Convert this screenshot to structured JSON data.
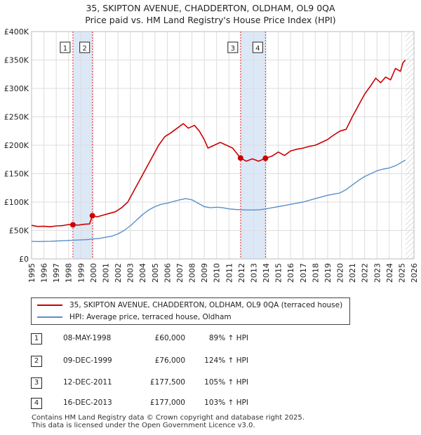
{
  "title_line1": "35, SKIPTON AVENUE, CHADDERTON, OLDHAM, OL9 0QA",
  "title_line2": "Price paid vs. HM Land Registry's House Price Index (HPI)",
  "colors": {
    "property": "#cc0000",
    "hpi": "#5b8fc9",
    "shade": "#dde8f7",
    "vline_red": "#e03030",
    "vline_gray": "#888888",
    "grid": "#dddddd"
  },
  "chart_data": {
    "type": "line",
    "ylim": [
      0,
      400000
    ],
    "xlim": [
      1995,
      2026
    ],
    "y_ticks": [
      0,
      50000,
      100000,
      150000,
      200000,
      250000,
      300000,
      350000,
      400000
    ],
    "y_tick_labels": [
      "£0",
      "£50K",
      "£100K",
      "£150K",
      "£200K",
      "£250K",
      "£300K",
      "£350K",
      "£400K"
    ],
    "x_ticks": [
      1995,
      1996,
      1997,
      1998,
      1999,
      2000,
      2001,
      2002,
      2003,
      2004,
      2005,
      2006,
      2007,
      2008,
      2009,
      2010,
      2011,
      2012,
      2013,
      2014,
      2015,
      2016,
      2017,
      2018,
      2019,
      2020,
      2021,
      2022,
      2023,
      2024,
      2025,
      2026
    ],
    "x_tick_labels": [
      "1995",
      "1996",
      "1997",
      "1998",
      "1999",
      "2000",
      "2001",
      "2002",
      "2003",
      "2004",
      "2005",
      "2006",
      "2007",
      "2008",
      "2009",
      "2010",
      "2011",
      "2012",
      "2013",
      "2014",
      "2015",
      "2016",
      "2017",
      "2018",
      "2019",
      "2020",
      "2021",
      "2022",
      "2023",
      "2024",
      "2025",
      "2026"
    ],
    "shaded_ranges": [
      [
        1998.35,
        1999.93
      ],
      [
        2011.94,
        2013.96
      ]
    ],
    "forecast_start": 2025.3,
    "series": [
      {
        "name": "35, SKIPTON AVENUE, CHADDERTON, OLDHAM, OL9 0QA (terraced house)",
        "x": [
          1995.0,
          1995.5,
          1996.0,
          1996.5,
          1997.0,
          1997.5,
          1998.0,
          1998.35,
          1998.8,
          1999.3,
          1999.7,
          1999.93,
          2000.3,
          2000.8,
          2001.3,
          2001.8,
          2002.3,
          2002.8,
          2003.3,
          2003.8,
          2004.3,
          2004.8,
          2005.3,
          2005.8,
          2006.3,
          2006.8,
          2007.3,
          2007.7,
          2008.2,
          2008.6,
          2009.0,
          2009.3,
          2009.8,
          2010.3,
          2010.8,
          2011.3,
          2011.94,
          2012.4,
          2012.9,
          2013.4,
          2013.96,
          2014.5,
          2015.0,
          2015.5,
          2016.0,
          2016.5,
          2017.0,
          2017.5,
          2018.0,
          2018.5,
          2019.0,
          2019.5,
          2020.0,
          2020.5,
          2021.0,
          2021.5,
          2022.0,
          2022.5,
          2022.9,
          2023.3,
          2023.7,
          2024.1,
          2024.5,
          2024.9,
          2025.1,
          2025.3
        ],
        "y": [
          59000,
          57000,
          57500,
          56500,
          58000,
          58500,
          60500,
          60000,
          59500,
          61000,
          61500,
          76000,
          74000,
          77000,
          80000,
          83000,
          90000,
          100000,
          120000,
          140000,
          160000,
          180000,
          200000,
          215000,
          222000,
          230000,
          238000,
          230000,
          235000,
          225000,
          210000,
          195000,
          200000,
          205000,
          200000,
          195000,
          177500,
          172000,
          176000,
          172000,
          177000,
          181000,
          188000,
          182000,
          190000,
          193000,
          195000,
          198000,
          200000,
          205000,
          210000,
          218000,
          225000,
          228000,
          250000,
          270000,
          290000,
          305000,
          318000,
          310000,
          320000,
          315000,
          335000,
          330000,
          345000,
          350000
        ]
      },
      {
        "name": "HPI: Average price, terraced house, Oldham",
        "x": [
          1995.0,
          1995.5,
          1996.0,
          1996.5,
          1997.0,
          1997.5,
          1998.0,
          1998.5,
          1999.0,
          1999.5,
          2000.0,
          2000.5,
          2001.0,
          2001.5,
          2002.0,
          2002.5,
          2003.0,
          2003.5,
          2004.0,
          2004.5,
          2005.0,
          2005.5,
          2006.0,
          2006.5,
          2007.0,
          2007.5,
          2008.0,
          2008.5,
          2009.0,
          2009.5,
          2010.0,
          2010.5,
          2011.0,
          2011.5,
          2012.0,
          2012.5,
          2013.0,
          2013.5,
          2014.0,
          2014.5,
          2015.0,
          2015.5,
          2016.0,
          2016.5,
          2017.0,
          2017.5,
          2018.0,
          2018.5,
          2019.0,
          2019.5,
          2020.0,
          2020.5,
          2021.0,
          2021.5,
          2022.0,
          2022.5,
          2023.0,
          2023.5,
          2024.0,
          2024.5,
          2025.0,
          2025.3
        ],
        "y": [
          31000,
          30500,
          30800,
          31000,
          31500,
          32000,
          32500,
          33000,
          33500,
          34000,
          35000,
          36000,
          38000,
          40000,
          44000,
          50000,
          58000,
          68000,
          78000,
          86000,
          92000,
          96000,
          98000,
          101000,
          104000,
          106000,
          104000,
          98000,
          92000,
          90000,
          91000,
          90000,
          88000,
          87000,
          86500,
          86000,
          86000,
          86500,
          88000,
          90000,
          92000,
          94000,
          96000,
          98000,
          100000,
          103000,
          106000,
          109000,
          112000,
          114000,
          116000,
          122000,
          130000,
          138000,
          145000,
          150000,
          155000,
          158000,
          160000,
          164000,
          170000,
          174000
        ]
      }
    ],
    "sale_points": [
      {
        "label": "1",
        "x": 1998.35,
        "y": 60000
      },
      {
        "label": "2",
        "x": 1999.93,
        "y": 76000
      },
      {
        "label": "3",
        "x": 2011.94,
        "y": 177500
      },
      {
        "label": "4",
        "x": 2013.96,
        "y": 177000
      }
    ]
  },
  "legend": {
    "property_label": "35, SKIPTON AVENUE, CHADDERTON, OLDHAM, OL9 0QA (terraced house)",
    "hpi_label": "HPI: Average price, terraced house, Oldham"
  },
  "transactions": [
    {
      "num": "1",
      "date": "08-MAY-1998",
      "price": "£60,000",
      "hpi": "89% ↑ HPI"
    },
    {
      "num": "2",
      "date": "09-DEC-1999",
      "price": "£76,000",
      "hpi": "124% ↑ HPI"
    },
    {
      "num": "3",
      "date": "12-DEC-2011",
      "price": "£177,500",
      "hpi": "105% ↑ HPI"
    },
    {
      "num": "4",
      "date": "16-DEC-2013",
      "price": "£177,000",
      "hpi": "103% ↑ HPI"
    }
  ],
  "footer_line1": "Contains HM Land Registry data © Crown copyright and database right 2025.",
  "footer_line2": "This data is licensed under the Open Government Licence v3.0."
}
